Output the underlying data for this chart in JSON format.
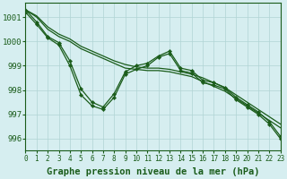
{
  "background_color": "#d6eef0",
  "grid_color": "#b0d4d4",
  "line_color": "#1a5c1a",
  "xlabel": "Graphe pression niveau de la mer (hPa)",
  "xlabel_fontsize": 7.5,
  "xtick_fontsize": 5.5,
  "ytick_fontsize": 6.5,
  "xlim": [
    0,
    23
  ],
  "ylim": [
    995.5,
    1001.6
  ],
  "yticks": [
    996,
    997,
    998,
    999,
    1000,
    1001
  ],
  "xticks": [
    0,
    1,
    2,
    3,
    4,
    5,
    6,
    7,
    8,
    9,
    10,
    11,
    12,
    13,
    14,
    15,
    16,
    17,
    18,
    19,
    20,
    21,
    22,
    23
  ],
  "series_jagged1": [
    1001.2,
    1000.7,
    1000.15,
    999.85,
    999.0,
    997.8,
    997.35,
    997.2,
    997.7,
    998.65,
    998.85,
    999.0,
    999.35,
    999.5,
    998.8,
    998.7,
    998.3,
    998.2,
    998.05,
    997.6,
    997.3,
    997.0,
    996.6,
    996.0
  ],
  "series_jagged2": [
    1001.3,
    1000.8,
    1000.2,
    999.95,
    999.2,
    998.05,
    997.5,
    997.3,
    997.85,
    998.75,
    999.0,
    999.1,
    999.4,
    999.6,
    998.9,
    998.8,
    998.4,
    998.3,
    998.1,
    997.7,
    997.4,
    997.1,
    996.7,
    996.1
  ],
  "line_smooth1": [
    1001.3,
    1001.0,
    1000.5,
    1000.2,
    1000.0,
    999.7,
    999.5,
    999.3,
    999.1,
    998.9,
    998.85,
    998.8,
    998.8,
    998.75,
    998.65,
    998.55,
    998.35,
    998.15,
    997.95,
    997.65,
    997.35,
    997.05,
    996.75,
    996.45
  ],
  "line_smooth2": [
    1001.3,
    1001.05,
    1000.6,
    1000.3,
    1000.1,
    999.8,
    999.6,
    999.4,
    999.2,
    999.05,
    998.95,
    998.9,
    998.9,
    998.85,
    998.75,
    998.65,
    998.5,
    998.3,
    998.1,
    997.8,
    997.5,
    997.2,
    996.9,
    996.6
  ]
}
